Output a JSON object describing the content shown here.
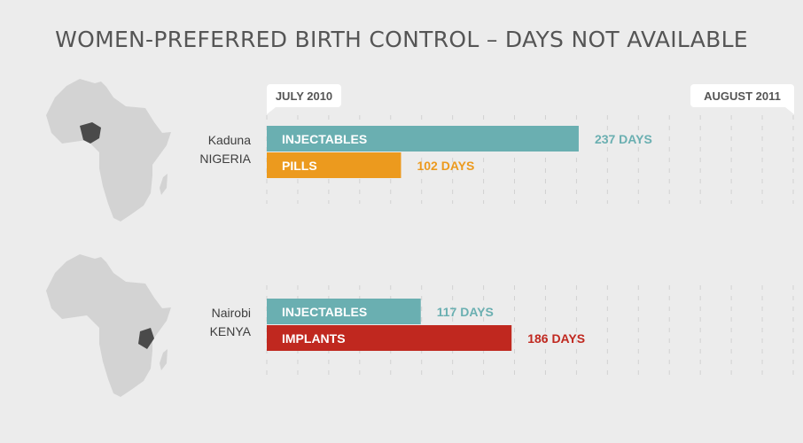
{
  "title": "WOMEN-PREFERRED BIRTH CONTROL – DAYS NOT AVAILABLE",
  "colors": {
    "injectables": "#6aafb1",
    "pills": "#ec9a1e",
    "implants": "#c0281f",
    "map_land": "#d3d3d3",
    "map_highlight": "#4a4a4a"
  },
  "chart_data": {
    "type": "bar",
    "orientation": "horizontal",
    "x_start_label": "JULY 2010",
    "x_end_label": "AUGUST 2011",
    "xlim": [
      0,
      400
    ],
    "unit": "DAYS",
    "groups": [
      {
        "city": "Kaduna",
        "country": "NIGERIA",
        "bars": [
          {
            "name": "INJECTABLES",
            "value": 237,
            "value_label": "237 DAYS",
            "color": "#6aafb1"
          },
          {
            "name": "PILLS",
            "value": 102,
            "value_label": "102 DAYS",
            "color": "#ec9a1e"
          }
        ]
      },
      {
        "city": "Nairobi",
        "country": "KENYA",
        "bars": [
          {
            "name": "INJECTABLES",
            "value": 117,
            "value_label": "117  DAYS",
            "color": "#6aafb1"
          },
          {
            "name": "IMPLANTS",
            "value": 186,
            "value_label": "186 DAYS",
            "color": "#c0281f"
          }
        ]
      }
    ]
  }
}
